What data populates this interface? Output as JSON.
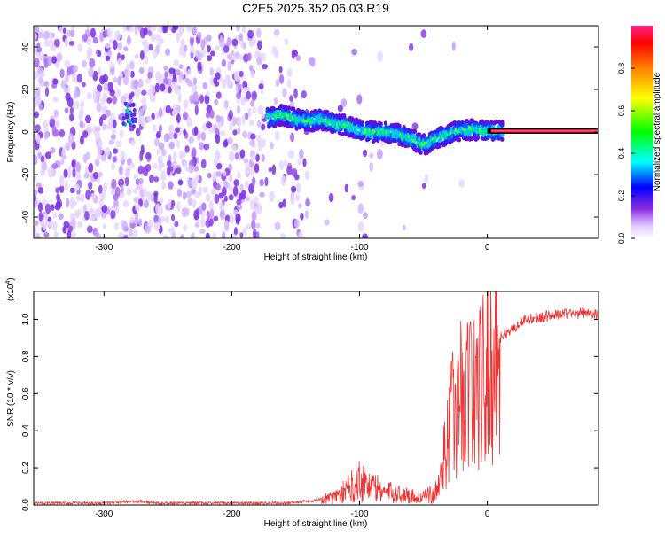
{
  "title": "C2E5.2025.352.06.03.R19",
  "colorbar": {
    "label": "Normalized spectral amplitude",
    "ticks": [
      {
        "value": 0.0,
        "label": "0.0"
      },
      {
        "value": 0.2,
        "label": "0.2"
      },
      {
        "value": 0.4,
        "label": "0.4"
      },
      {
        "value": 0.6,
        "label": "0.6"
      },
      {
        "value": 0.8,
        "label": "0.8"
      }
    ]
  },
  "chart_data": [
    {
      "type": "heatmap",
      "ylabel": "Frequency (Hz)",
      "xlabel": "Height of straight line (km)",
      "xlim": [
        -355,
        87
      ],
      "ylim": [
        -50,
        50
      ],
      "xticks": [
        {
          "value": -300,
          "label": "-300"
        },
        {
          "value": -200,
          "label": "-200"
        },
        {
          "value": -100,
          "label": "-100"
        },
        {
          "value": 0,
          "label": "0"
        }
      ],
      "yticks": [
        {
          "value": -40,
          "label": "-40"
        },
        {
          "value": -20,
          "label": "-20"
        },
        {
          "value": 0,
          "label": "0"
        },
        {
          "value": 20,
          "label": "20"
        },
        {
          "value": 40,
          "label": "40"
        }
      ],
      "ridge": {
        "x": [
          -170,
          -160,
          -150,
          -140,
          -130,
          -120,
          -110,
          -100,
          -90,
          -80,
          -70,
          -60,
          -50,
          -45,
          -40,
          -30,
          -20,
          -10,
          0,
          10,
          20,
          87
        ],
        "y": [
          7,
          8,
          6,
          5,
          6,
          4,
          3,
          1,
          0,
          0,
          -1,
          -3,
          -6,
          -5,
          -3,
          -1,
          1,
          1,
          0.5,
          0.5,
          0.5,
          0.5
        ]
      },
      "colorscale": "rainbow",
      "grid": false
    },
    {
      "type": "line",
      "ylabel": "SNR (10 * v/v)",
      "yscale_label": "(x10",
      "yscale_exp": "4",
      "xlabel": "Height of straight line (km)",
      "xlim": [
        -355,
        87
      ],
      "ylim": [
        0,
        1.15
      ],
      "color": "#ee3333",
      "xticks": [
        {
          "value": -300,
          "label": "-300"
        },
        {
          "value": -200,
          "label": "-200"
        },
        {
          "value": -100,
          "label": "-100"
        },
        {
          "value": 0,
          "label": "0"
        }
      ],
      "yticks": [
        {
          "value": 0.0,
          "label": "0.0"
        },
        {
          "value": 0.2,
          "label": "0.2"
        },
        {
          "value": 0.4,
          "label": "0.4"
        },
        {
          "value": 0.6,
          "label": "0.6"
        },
        {
          "value": 0.8,
          "label": "0.8"
        },
        {
          "value": 1.0,
          "label": "1.0"
        }
      ],
      "series": [
        {
          "x": [
            -355,
            -300,
            -280,
            -250,
            -200,
            -160,
            -140,
            -120,
            -110,
            -100,
            -95,
            -90,
            -80,
            -70,
            -60,
            -50,
            -40,
            -35,
            -30,
            -25,
            -20,
            -15,
            -10,
            -5,
            0,
            5,
            10,
            20,
            30,
            40,
            50,
            60,
            70,
            80,
            87
          ],
          "y": [
            0.01,
            0.01,
            0.02,
            0.01,
            0.01,
            0.01,
            0.02,
            0.04,
            0.08,
            0.14,
            0.12,
            0.1,
            0.07,
            0.06,
            0.05,
            0.04,
            0.07,
            0.2,
            0.45,
            0.5,
            0.6,
            0.65,
            0.6,
            0.65,
            0.72,
            0.82,
            0.9,
            0.95,
            1.0,
            1.01,
            1.02,
            1.03,
            1.03,
            1.04,
            1.02
          ]
        }
      ],
      "grid": false
    }
  ]
}
